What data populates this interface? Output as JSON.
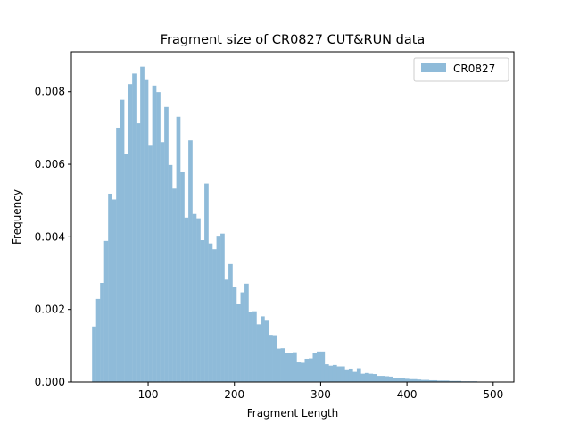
{
  "chart_data": {
    "type": "bar",
    "title": "Fragment size of CR0827 CUT&RUN data",
    "xlabel": "Fragment Length",
    "ylabel": "Frequency",
    "xlim": [
      11,
      524
    ],
    "ylim": [
      0,
      0.0091
    ],
    "xticks": [
      100,
      200,
      300,
      400,
      500
    ],
    "xtick_labels": [
      "100",
      "200",
      "300",
      "400",
      "500"
    ],
    "yticks": [
      0,
      0.002,
      0.004,
      0.006,
      0.008
    ],
    "ytick_labels": [
      "0.000",
      "0.002",
      "0.004",
      "0.006",
      "0.008"
    ],
    "bin_width": 4.65,
    "bin_start": 35,
    "series": [
      {
        "name": "CR0827",
        "color": "#8fbbd9",
        "values": [
          0.00153,
          0.00229,
          0.00273,
          0.00389,
          0.00519,
          0.00503,
          0.00701,
          0.00778,
          0.00629,
          0.00821,
          0.0085,
          0.00713,
          0.00869,
          0.00832,
          0.00651,
          0.00817,
          0.00799,
          0.00661,
          0.00758,
          0.00598,
          0.00533,
          0.00731,
          0.00578,
          0.00453,
          0.00666,
          0.00463,
          0.00451,
          0.00391,
          0.00547,
          0.00382,
          0.00366,
          0.00403,
          0.00409,
          0.00282,
          0.00325,
          0.00263,
          0.00214,
          0.00247,
          0.00271,
          0.00192,
          0.00195,
          0.00159,
          0.00181,
          0.00169,
          0.0013,
          0.00129,
          0.00092,
          0.00093,
          0.00079,
          0.0008,
          0.00082,
          0.00054,
          0.00053,
          0.00064,
          0.00065,
          0.0008,
          0.00084,
          0.00084,
          0.00049,
          0.00045,
          0.00047,
          0.00043,
          0.00043,
          0.00035,
          0.00037,
          0.00028,
          0.00038,
          0.00023,
          0.00025,
          0.00023,
          0.00022,
          0.00017,
          0.00017,
          0.00016,
          0.00015,
          0.00011,
          0.00011,
          0.0001,
          9e-05,
          8e-05,
          8e-05,
          7e-05,
          6e-05,
          6e-05,
          5e-05,
          5e-05,
          4e-05,
          4e-05,
          4e-05,
          3e-05,
          3e-05,
          3e-05,
          2e-05,
          2e-05,
          2e-05,
          2e-05,
          1e-05,
          1e-05,
          1e-05,
          1e-05
        ]
      }
    ],
    "legend": {
      "position": "top-right",
      "labels": [
        "CR0827"
      ]
    },
    "grid": false
  }
}
